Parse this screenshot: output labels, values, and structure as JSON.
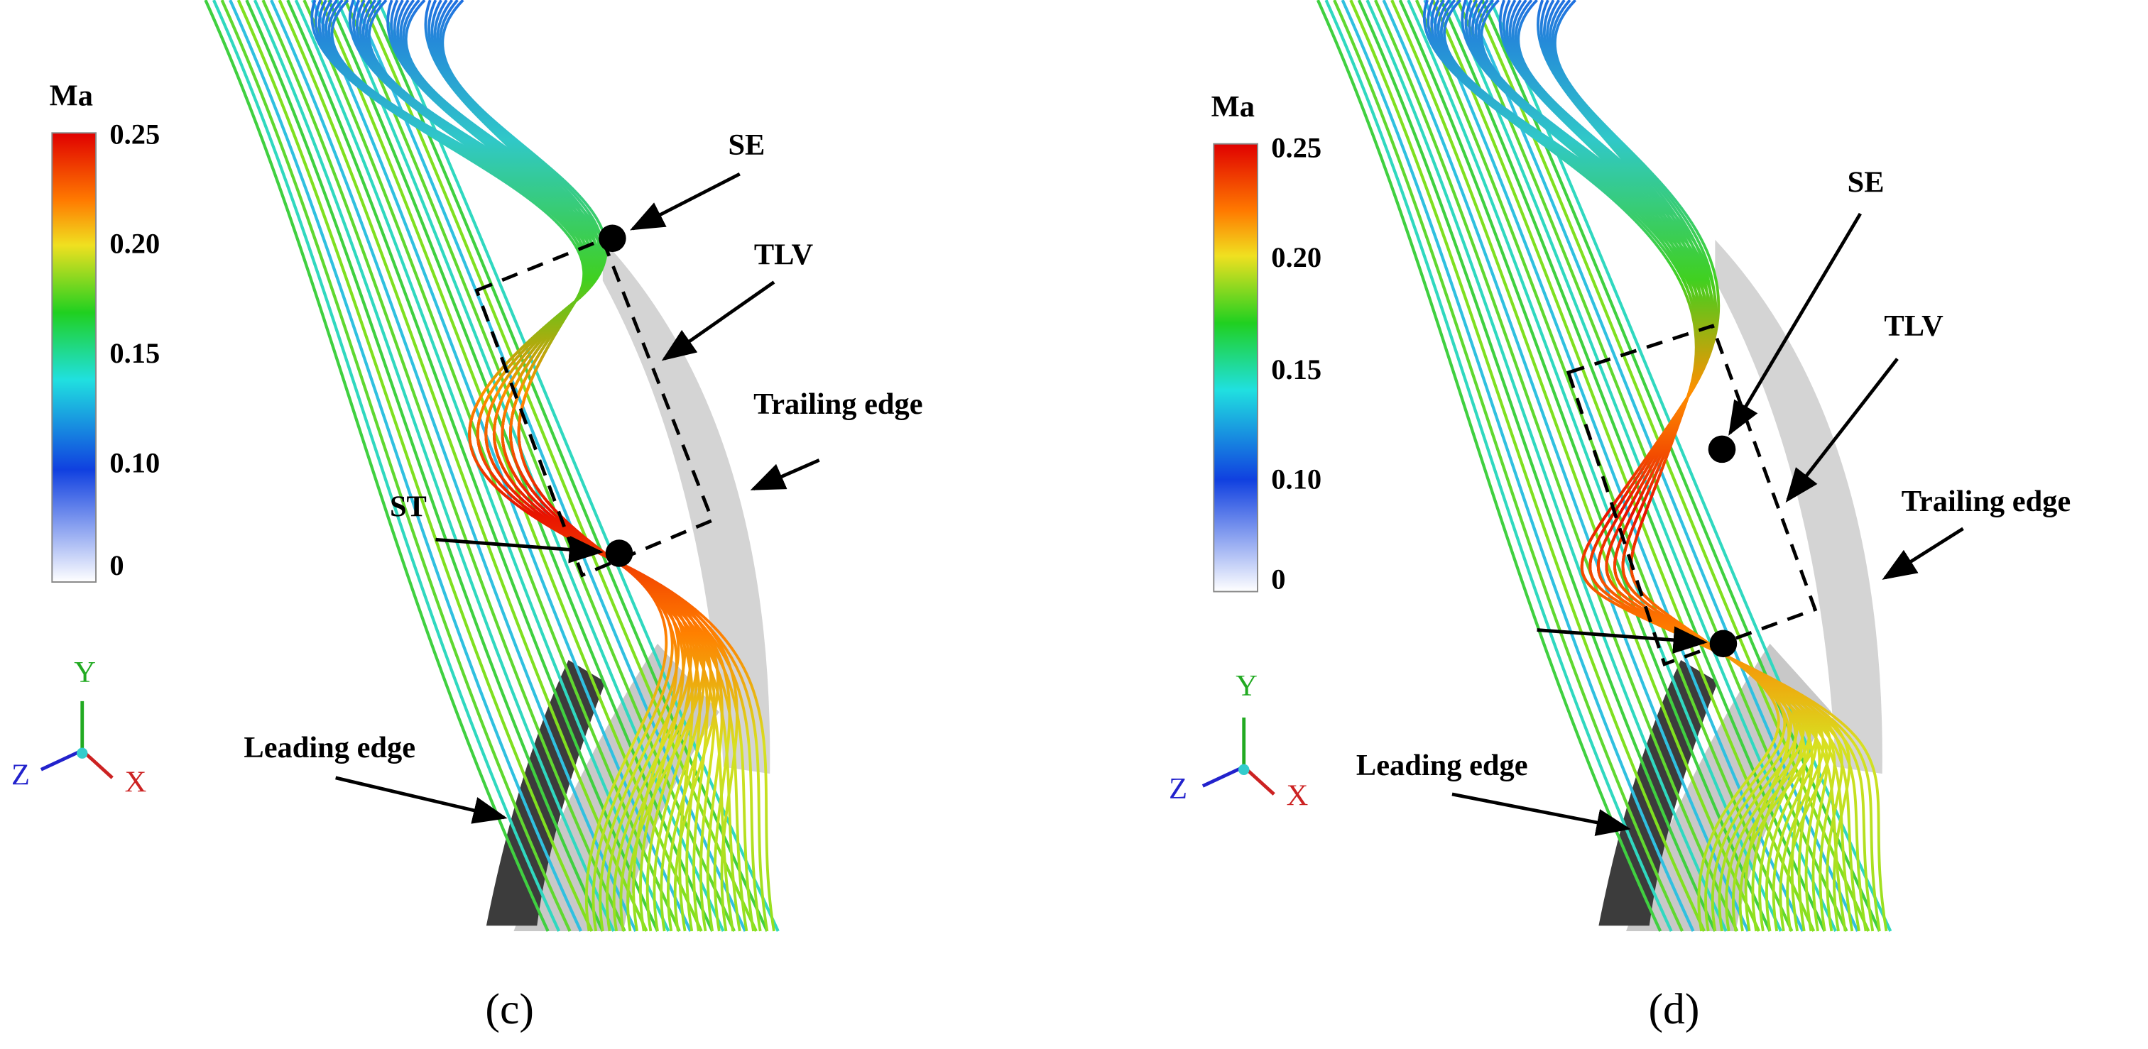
{
  "panels": [
    {
      "colorbar": {
        "title": "Ma",
        "ticks": [
          "0.25",
          "0.20",
          "0.15",
          "0.10",
          "0"
        ]
      },
      "axes": {
        "y": "Y",
        "z": "Z",
        "x": "X"
      },
      "labels": {
        "se": "SE",
        "tlv": "TLV",
        "trailing_edge": "Trailing edge",
        "st": "ST",
        "leading_edge": "Leading edge"
      },
      "caption": "(c)"
    },
    {
      "colorbar": {
        "title": "Ma",
        "ticks": [
          "0.25",
          "0.20",
          "0.15",
          "0.10",
          "0"
        ]
      },
      "axes": {
        "y": "Y",
        "z": "Z",
        "x": "X"
      },
      "labels": {
        "se": "SE",
        "tlv": "TLV",
        "trailing_edge": "Trailing edge",
        "leading_edge": "Leading edge"
      },
      "caption": "(d)"
    }
  ]
}
